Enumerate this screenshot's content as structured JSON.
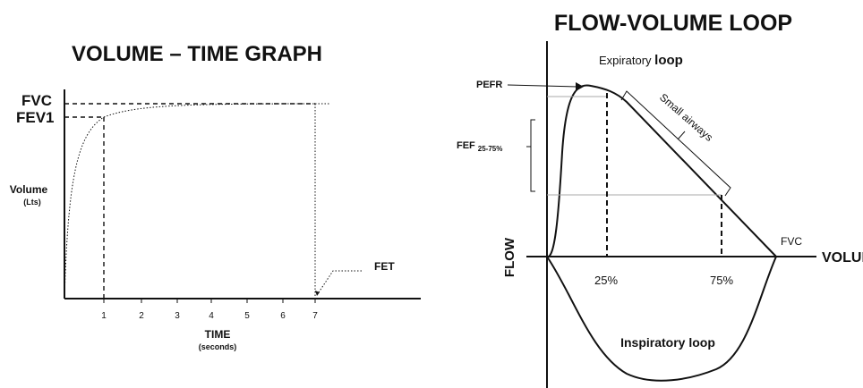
{
  "left_panel": {
    "title": "VOLUME – TIME GRAPH",
    "fvc_label": "FVC",
    "fev1_label": "FEV1",
    "y_label": "Volume",
    "y_unit": "(Lts)",
    "x_label": "TIME",
    "x_unit": "(seconds)",
    "x_ticks": [
      "1",
      "2",
      "3",
      "4",
      "5",
      "6",
      "7"
    ],
    "fet_label": "FET"
  },
  "right_panel": {
    "title": "FLOW-VOLUME LOOP",
    "expiratory_label_a": "Expiratory",
    "expiratory_label_b": "loop",
    "pefr_label": "PEFR",
    "small_airways_label": "Small airways",
    "fef_label": "FEF",
    "fef_sub": "25-75%",
    "fvc_label": "FVC",
    "flow_label": "FLOW",
    "volume_label": "VOLUME",
    "pct_25": "25%",
    "pct_75": "75%",
    "inspiratory_label": "Inspiratory loop"
  }
}
